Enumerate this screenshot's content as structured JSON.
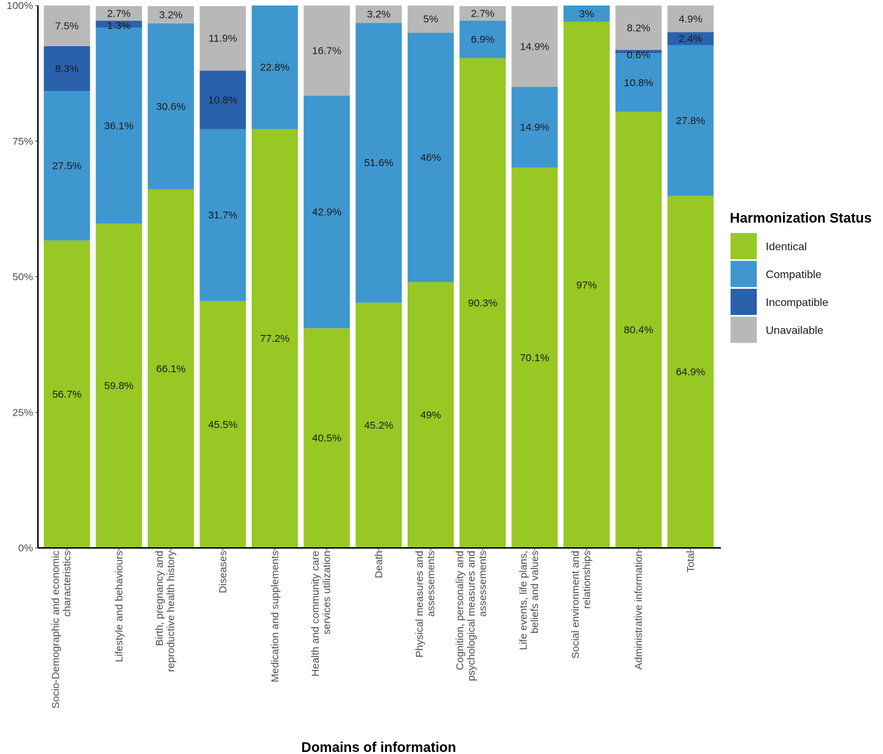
{
  "chart_data": {
    "type": "bar",
    "stacked": true,
    "xlabel": "Domains of information",
    "ylabel": "",
    "ylim": [
      0,
      100
    ],
    "yticks": [
      "0%",
      "25%",
      "50%",
      "75%",
      "100%"
    ],
    "grid": false,
    "legend_position": "right",
    "legend_title": "Harmonization Status",
    "categories": [
      [
        "Socio-Demographic and economic",
        "characteristics"
      ],
      [
        "Lifestyle and behaviours"
      ],
      [
        "Birth, pregnancy and",
        "reproductive health history"
      ],
      [
        "Diseases"
      ],
      [
        "Medication and supplements"
      ],
      [
        "Health and community care",
        "services utilization"
      ],
      [
        "Death"
      ],
      [
        "Physical measures and",
        "assessements"
      ],
      [
        "Cognition, personality and",
        "psychological measures and",
        "assessements"
      ],
      [
        "Life events, life plans,",
        "beliefs and values"
      ],
      [
        "Social environment and",
        "relationships"
      ],
      [
        "Administrative information"
      ],
      [
        "Total"
      ]
    ],
    "series": [
      {
        "name": "Identical",
        "color": "#97c823",
        "values": [
          56.7,
          59.8,
          66.1,
          45.5,
          77.2,
          40.5,
          45.2,
          49,
          90.3,
          70.1,
          97,
          80.4,
          64.9
        ]
      },
      {
        "name": "Compatible",
        "color": "#3f97cf",
        "values": [
          27.5,
          36.1,
          30.6,
          31.7,
          22.8,
          42.9,
          51.6,
          46,
          6.9,
          14.9,
          3,
          10.8,
          27.8
        ]
      },
      {
        "name": "Incompatible",
        "color": "#2a61ad",
        "values": [
          8.3,
          1.3,
          0,
          10.8,
          0,
          0,
          0,
          0,
          0,
          0,
          0,
          0.6,
          2.4
        ]
      },
      {
        "name": "Unavailable",
        "color": "#b8b8b8",
        "values": [
          7.5,
          2.7,
          3.2,
          11.9,
          0,
          16.7,
          3.2,
          5,
          2.7,
          14.9,
          0,
          8.2,
          4.9
        ]
      }
    ],
    "labels": [
      [
        "56.7%",
        "27.5%",
        "8.3%",
        "7.5%"
      ],
      [
        "59.8%",
        "36.1%",
        "1.3%",
        "2.7%"
      ],
      [
        "66.1%",
        "30.6%",
        null,
        "3.2%"
      ],
      [
        "45.5%",
        "31.7%",
        "10.8%",
        "11.9%"
      ],
      [
        "77.2%",
        "22.8%",
        null,
        null
      ],
      [
        "40.5%",
        "42.9%",
        null,
        "16.7%"
      ],
      [
        "45.2%",
        "51.6%",
        null,
        "3.2%"
      ],
      [
        "49%",
        "46%",
        null,
        "5%"
      ],
      [
        "90.3%",
        "6.9%",
        null,
        "2.7%"
      ],
      [
        "70.1%",
        "14.9%",
        null,
        "14.9%"
      ],
      [
        "97%",
        "3%",
        null,
        null
      ],
      [
        "80.4%",
        "10.8%",
        "0.6%",
        "8.2%"
      ],
      [
        "64.9%",
        "27.8%",
        "2.4%",
        "4.9%"
      ]
    ]
  }
}
